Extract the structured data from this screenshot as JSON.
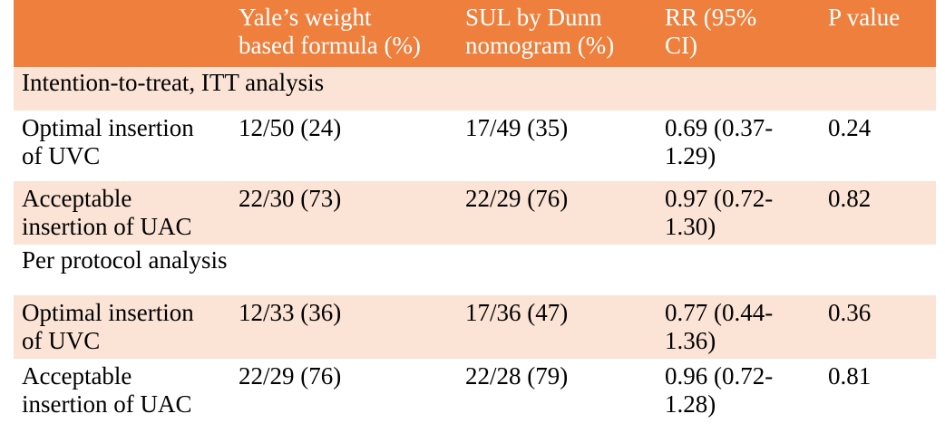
{
  "table": {
    "header": {
      "col0": "",
      "col1": "Yale’s weight\nbased formula (%)",
      "col2": "SUL by Dunn\nnomogram (%)",
      "col3": "RR (95%\nCI)",
      "col4": "P value"
    },
    "sections": [
      {
        "title": "Intention-to-treat, ITT analysis",
        "rows": [
          {
            "label": "Optimal insertion\nof UVC",
            "yale": "12/50 (24)",
            "sul": "17/49 (35)",
            "rr": "0.69 (0.37-\n1.29)",
            "p": "0.24"
          },
          {
            "label": "Acceptable\ninsertion of UAC",
            "yale": "22/30 (73)",
            "sul": "22/29 (76)",
            "rr": "0.97 (0.72-\n1.30)",
            "p": "0.82"
          }
        ]
      },
      {
        "title": "Per protocol analysis",
        "rows": [
          {
            "label": "Optimal insertion\nof UVC",
            "yale": "12/33 (36)",
            "sul": "17/36 (47)",
            "rr": "0.77 (0.44-\n1.36)",
            "p": "0.36"
          },
          {
            "label": "Acceptable\ninsertion of UAC",
            "yale": "22/29 (76)",
            "sul": "22/28 (79)",
            "rr": "0.96 (0.72-\n1.28)",
            "p": "0.81"
          }
        ]
      }
    ]
  },
  "colors": {
    "header_bg": "#ee7f3c",
    "band_bg": "#fbe3d6"
  }
}
